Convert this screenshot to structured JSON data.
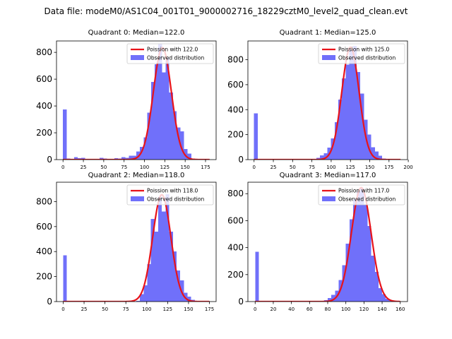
{
  "figure": {
    "title": "Data file: modeM0/AS1C04_001T01_9000002716_18229cztM0_level2_quad_clean.evt"
  },
  "colors": {
    "histogram": "#7070fa",
    "fit_line": "#e8131a",
    "axis": "#000000"
  },
  "chart_data": [
    {
      "type": "bar",
      "title": "Quadrant 0: Median=122.0",
      "xlim": [
        -8,
        188
      ],
      "ylim": [
        0,
        885
      ],
      "xticks": [
        0,
        25,
        50,
        75,
        100,
        125,
        150,
        175
      ],
      "yticks": [
        0,
        200,
        400,
        600,
        800
      ],
      "bins": [
        0,
        4.5,
        9,
        13.5,
        18,
        22.5,
        27,
        31.5,
        36,
        40.5,
        45,
        49.5,
        54,
        58.5,
        63,
        67.5,
        72,
        76.5,
        81,
        85.5,
        90,
        94.5,
        99,
        103.5,
        108,
        112.5,
        117,
        121.5,
        126,
        130.5,
        135,
        139.5,
        144,
        148.5,
        153,
        157.5,
        162,
        166.5,
        171,
        175.5,
        180
      ],
      "counts": [
        375,
        8,
        3,
        18,
        10,
        12,
        5,
        3,
        5,
        6,
        12,
        8,
        3,
        4,
        10,
        8,
        18,
        12,
        30,
        28,
        60,
        95,
        165,
        350,
        580,
        710,
        860,
        650,
        760,
        500,
        360,
        240,
        210,
        80,
        45,
        8,
        3,
        2,
        0,
        0
      ],
      "fit": {
        "mean": 122.0,
        "peak": 835,
        "x_start": 0,
        "x_end": 180
      },
      "legend": {
        "fit_label": "Poission with 122.0",
        "hist_label": "Observed distribution",
        "loc": "upper right"
      }
    },
    {
      "type": "bar",
      "title": "Quadrant 1: Median=125.0",
      "xlim": [
        -8,
        199
      ],
      "ylim": [
        0,
        950
      ],
      "xticks": [
        0,
        25,
        50,
        75,
        100,
        125,
        150,
        175,
        200
      ],
      "yticks": [
        0,
        200,
        400,
        600,
        800
      ],
      "bins": [
        0,
        4.75,
        9.5,
        14.25,
        19,
        23.75,
        28.5,
        33.25,
        38,
        42.75,
        47.5,
        52.25,
        57,
        61.75,
        66.5,
        71.25,
        76,
        80.75,
        85.5,
        90.25,
        95,
        99.75,
        104.5,
        109.25,
        114,
        118.75,
        123.5,
        128.25,
        133,
        137.75,
        142.5,
        147.25,
        152,
        156.75,
        161.5,
        166.25,
        171,
        175.75,
        180.5,
        185.25,
        190
      ],
      "counts": [
        370,
        5,
        2,
        2,
        1,
        1,
        1,
        1,
        1,
        1,
        1,
        1,
        1,
        1,
        2,
        3,
        5,
        15,
        35,
        50,
        95,
        170,
        300,
        480,
        650,
        760,
        880,
        910,
        700,
        530,
        320,
        200,
        100,
        65,
        30,
        8,
        2,
        1,
        0,
        0
      ],
      "fit": {
        "mean": 125.0,
        "peak": 900,
        "x_start": 0,
        "x_end": 190
      },
      "legend": {
        "fit_label": "Poission with 125.0",
        "hist_label": "Observed distribution",
        "loc": "upper right"
      }
    },
    {
      "type": "bar",
      "title": "Quadrant 2: Median=118.0",
      "xlim": [
        -8,
        183
      ],
      "ylim": [
        0,
        955
      ],
      "xticks": [
        0,
        25,
        50,
        75,
        100,
        125,
        150,
        175
      ],
      "yticks": [
        0,
        200,
        400,
        600,
        800
      ],
      "bins": [
        0,
        4.375,
        8.75,
        13.125,
        17.5,
        21.875,
        26.25,
        30.625,
        35,
        39.375,
        43.75,
        48.125,
        52.5,
        56.875,
        61.25,
        65.625,
        70,
        74.375,
        78.75,
        83.125,
        87.5,
        91.875,
        96.25,
        100.625,
        105,
        109.375,
        113.75,
        118.125,
        122.5,
        126.875,
        131.25,
        135.625,
        140,
        144.375,
        148.75,
        153.125,
        157.5,
        161.875,
        166.25,
        170.625,
        175
      ],
      "counts": [
        370,
        0,
        0,
        0,
        0,
        0,
        0,
        0,
        0,
        0,
        0,
        0,
        0,
        0,
        0,
        0,
        0,
        0,
        0,
        0,
        5,
        60,
        130,
        300,
        660,
        560,
        840,
        720,
        860,
        560,
        400,
        250,
        170,
        70,
        40,
        15,
        3,
        0,
        0,
        0
      ],
      "fit": {
        "mean": 118.0,
        "peak": 855,
        "x_start": 0,
        "x_end": 175
      },
      "legend": {
        "fit_label": "Poission with 118.0",
        "hist_label": "Observed distribution",
        "loc": "upper right"
      }
    },
    {
      "type": "bar",
      "title": "Quadrant 3: Median=117.0",
      "xlim": [
        -8,
        168
      ],
      "ylim": [
        0,
        885
      ],
      "xticks": [
        0,
        20,
        40,
        60,
        80,
        100,
        120,
        140,
        160
      ],
      "yticks": [
        0,
        200,
        400,
        600,
        800
      ],
      "bins": [
        0,
        4,
        8,
        12,
        16,
        20,
        24,
        28,
        32,
        36,
        40,
        44,
        48,
        52,
        56,
        60,
        64,
        68,
        72,
        76,
        80,
        84,
        88,
        92,
        96,
        100,
        104,
        108,
        112,
        116,
        120,
        124,
        128,
        132,
        136,
        140,
        144,
        148,
        152,
        156,
        160
      ],
      "counts": [
        370,
        2,
        1,
        1,
        1,
        1,
        1,
        1,
        1,
        1,
        1,
        1,
        1,
        1,
        1,
        1,
        2,
        3,
        5,
        10,
        25,
        50,
        80,
        160,
        270,
        430,
        610,
        760,
        820,
        840,
        720,
        560,
        340,
        220,
        100,
        55,
        20,
        5,
        1,
        0
      ],
      "fit": {
        "mean": 117.0,
        "peak": 845,
        "x_start": 0,
        "x_end": 160
      },
      "legend": {
        "fit_label": "Poission with 117.0",
        "hist_label": "Observed distribution",
        "loc": "upper right"
      }
    }
  ]
}
